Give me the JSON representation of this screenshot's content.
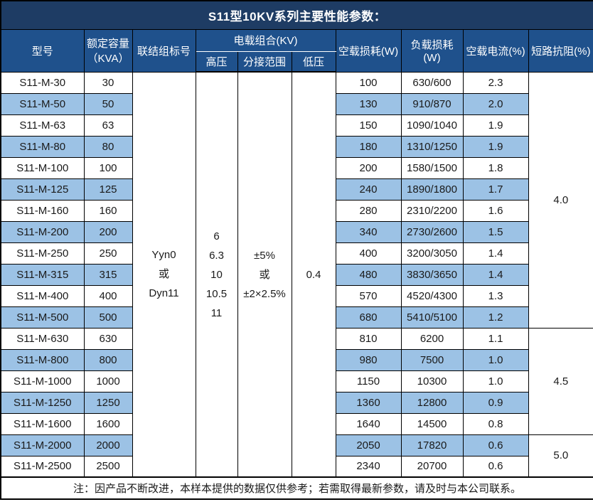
{
  "title": "S11型10KV系列主要性能参数：",
  "header": {
    "model": "型号",
    "capacity": "额定容量\n（KVA）",
    "connection": "联结组标号",
    "voltage_group": "电载组合(KV)",
    "hv": "高压",
    "tap_range": "分接范围",
    "lv": "低压",
    "no_load_loss": "空载损耗(W)",
    "load_loss": "负载损耗(W)",
    "no_load_current": "空载电流(%)",
    "impedance": "短路抗阻(%)"
  },
  "merged": {
    "connection_lines": [
      "Yyn0",
      "或",
      "Dyn11"
    ],
    "hv_lines": [
      "6",
      "6.3",
      "10",
      "10.5",
      "11"
    ],
    "tap_lines": [
      "±5%",
      "或",
      "±2×2.5%"
    ],
    "lv": "0.4"
  },
  "impedance_groups": [
    {
      "value": "4.0",
      "rows": 12
    },
    {
      "value": "4.5",
      "rows": 5
    },
    {
      "value": "5.0",
      "rows": 2
    }
  ],
  "rows": [
    {
      "model": "S11-M-30",
      "capacity": "30",
      "no_load_loss": "100",
      "load_loss": "630/600",
      "no_load_current": "2.3"
    },
    {
      "model": "S11-M-50",
      "capacity": "50",
      "no_load_loss": "130",
      "load_loss": "910/870",
      "no_load_current": "2.0"
    },
    {
      "model": "S11-M-63",
      "capacity": "63",
      "no_load_loss": "150",
      "load_loss": "1090/1040",
      "no_load_current": "1.9"
    },
    {
      "model": "S11-M-80",
      "capacity": "80",
      "no_load_loss": "180",
      "load_loss": "1310/1250",
      "no_load_current": "1.9"
    },
    {
      "model": "S11-M-100",
      "capacity": "100",
      "no_load_loss": "200",
      "load_loss": "1580/1500",
      "no_load_current": "1.8"
    },
    {
      "model": "S11-M-125",
      "capacity": "125",
      "no_load_loss": "240",
      "load_loss": "1890/1800",
      "no_load_current": "1.7"
    },
    {
      "model": "S11-M-160",
      "capacity": "160",
      "no_load_loss": "280",
      "load_loss": "2310/2200",
      "no_load_current": "1.6"
    },
    {
      "model": "S11-M-200",
      "capacity": "200",
      "no_load_loss": "340",
      "load_loss": "2730/2600",
      "no_load_current": "1.5"
    },
    {
      "model": "S11-M-250",
      "capacity": "250",
      "no_load_loss": "400",
      "load_loss": "3200/3050",
      "no_load_current": "1.4"
    },
    {
      "model": "S11-M-315",
      "capacity": "315",
      "no_load_loss": "480",
      "load_loss": "3830/3650",
      "no_load_current": "1.4"
    },
    {
      "model": "S11-M-400",
      "capacity": "400",
      "no_load_loss": "570",
      "load_loss": "4520/4300",
      "no_load_current": "1.3"
    },
    {
      "model": "S11-M-500",
      "capacity": "500",
      "no_load_loss": "680",
      "load_loss": "5410/5100",
      "no_load_current": "1.2"
    },
    {
      "model": "S11-M-630",
      "capacity": "630",
      "no_load_loss": "810",
      "load_loss": "6200",
      "no_load_current": "1.1"
    },
    {
      "model": "S11-M-800",
      "capacity": "800",
      "no_load_loss": "980",
      "load_loss": "7500",
      "no_load_current": "1.0"
    },
    {
      "model": "S11-M-1000",
      "capacity": "1000",
      "no_load_loss": "1150",
      "load_loss": "10300",
      "no_load_current": "1.0"
    },
    {
      "model": "S11-M-1250",
      "capacity": "1250",
      "no_load_loss": "1360",
      "load_loss": "12800",
      "no_load_current": "0.9"
    },
    {
      "model": "S11-M-1600",
      "capacity": "1600",
      "no_load_loss": "1640",
      "load_loss": "14500",
      "no_load_current": "0.8"
    },
    {
      "model": "S11-M-2000",
      "capacity": "2000",
      "no_load_loss": "2050",
      "load_loss": "17820",
      "no_load_current": "0.6"
    },
    {
      "model": "S11-M-2500",
      "capacity": "2500",
      "no_load_loss": "2340",
      "load_loss": "20700",
      "no_load_current": "0.6"
    }
  ],
  "note": "注：因产品不断改进，本样本提供的数据仅供参考；若需取得最新参数，请及时与本公司联系。",
  "colors": {
    "title_bg": "#1e3c64",
    "header_bg": "#1f518c",
    "stripe_bg": "#9cc2e5",
    "border": "#000000",
    "text": "#1a1a1a",
    "header_text": "#ffffff"
  }
}
